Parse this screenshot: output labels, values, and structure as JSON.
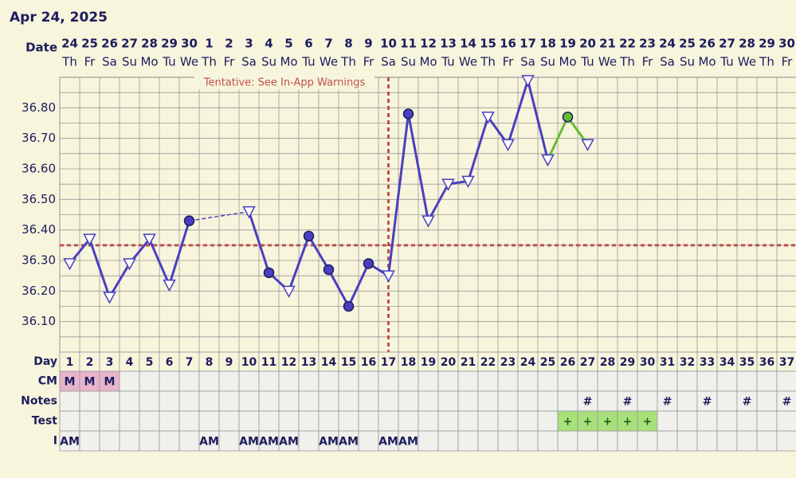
{
  "title": "Apr 24, 2025",
  "chart_data": {
    "type": "line",
    "x_header": "Date",
    "dates": [
      "24",
      "25",
      "26",
      "27",
      "28",
      "29",
      "30",
      "1",
      "2",
      "3",
      "4",
      "5",
      "6",
      "7",
      "8",
      "9",
      "10",
      "11",
      "12",
      "13",
      "14",
      "15",
      "16",
      "17",
      "18",
      "19",
      "20",
      "21",
      "22",
      "23",
      "24",
      "25",
      "26",
      "27",
      "28",
      "29",
      "30"
    ],
    "weekdays": [
      "Th",
      "Fr",
      "Sa",
      "Su",
      "Mo",
      "Tu",
      "We",
      "Th",
      "Fr",
      "Sa",
      "Su",
      "Mo",
      "Tu",
      "We",
      "Th",
      "Fr",
      "Sa",
      "Su",
      "Mo",
      "Tu",
      "We",
      "Th",
      "Fr",
      "Sa",
      "Su",
      "Mo",
      "Tu",
      "We",
      "Th",
      "Fr",
      "Sa",
      "Su",
      "Mo",
      "Tu",
      "We",
      "Th",
      "Fr"
    ],
    "ylim": [
      36.0,
      36.9
    ],
    "yticks": [
      {
        "value": 36.1,
        "label": "36.10"
      },
      {
        "value": 36.2,
        "label": "36.20"
      },
      {
        "value": 36.3,
        "label": "36.30"
      },
      {
        "value": 36.4,
        "label": "36.40"
      },
      {
        "value": 36.5,
        "label": "36.50"
      },
      {
        "value": 36.6,
        "label": "36.60"
      },
      {
        "value": 36.7,
        "label": "36.70"
      },
      {
        "value": 36.8,
        "label": "36.80"
      }
    ],
    "y_minor_ticks": [
      36.05,
      36.15,
      36.25,
      36.35,
      36.45,
      36.55,
      36.65,
      36.75,
      36.85
    ],
    "series": [
      {
        "color": "#4a3fbf",
        "values": [
          36.29,
          36.37,
          36.18,
          36.29,
          36.37,
          36.22,
          36.43,
          null,
          null,
          36.46,
          36.26,
          36.2,
          36.38,
          36.27,
          36.15,
          36.29,
          36.25,
          36.78,
          36.43,
          36.55,
          36.56,
          36.77,
          36.68,
          36.89,
          36.63,
          36.77,
          36.68,
          null,
          null,
          null,
          null,
          null,
          null,
          null,
          null,
          null,
          null
        ],
        "markers": [
          "open",
          "open",
          "open",
          "open",
          "open",
          "open",
          "filled",
          null,
          null,
          "open",
          "filled",
          "open",
          "filled",
          "filled",
          "filled",
          "filled",
          "open",
          "filled",
          "open",
          "open",
          "open",
          "open",
          "open",
          "open",
          "open",
          "filled",
          "open",
          null,
          null,
          null,
          null,
          null,
          null,
          null,
          null,
          null,
          null
        ]
      }
    ],
    "highlight": {
      "color": "#66bb33",
      "from_index": 24
    },
    "coverline": 36.35,
    "coverline_color": "#c0504d",
    "ovulation_index": 16,
    "annotation": "Tentative: See In-App Warnings"
  },
  "table": {
    "rows": [
      {
        "label": "Day",
        "color": "#f7f5dc",
        "cells": [
          1,
          2,
          3,
          4,
          5,
          6,
          7,
          8,
          9,
          10,
          11,
          12,
          13,
          14,
          15,
          16,
          17,
          18,
          19,
          20,
          21,
          22,
          23,
          24,
          25,
          26,
          27,
          28,
          29,
          30,
          31,
          32,
          33,
          34,
          35,
          36,
          37
        ]
      },
      {
        "label": "CM",
        "color": "#e8b4cc",
        "cells": [
          "M",
          "M",
          "M",
          null,
          null,
          null,
          null,
          null,
          null,
          null,
          null,
          null,
          null,
          null,
          null,
          null,
          null,
          null,
          null,
          null,
          null,
          null,
          null,
          null,
          null,
          null,
          null,
          null,
          null,
          null,
          null,
          null,
          null,
          null,
          null,
          null,
          null
        ]
      },
      {
        "label": "Notes",
        "color": "#f0f0ec",
        "cells": [
          null,
          null,
          null,
          null,
          null,
          null,
          null,
          null,
          null,
          null,
          null,
          null,
          null,
          null,
          null,
          null,
          null,
          null,
          null,
          null,
          null,
          null,
          null,
          null,
          null,
          null,
          "#",
          null,
          "#",
          null,
          "#",
          null,
          "#",
          null,
          "#",
          null,
          "#"
        ]
      },
      {
        "label": "Test",
        "color": "#a8e07a",
        "cells": [
          null,
          null,
          null,
          null,
          null,
          null,
          null,
          null,
          null,
          null,
          null,
          null,
          null,
          null,
          null,
          null,
          null,
          null,
          null,
          null,
          null,
          null,
          null,
          null,
          null,
          "+",
          "+",
          "+",
          "+",
          "+",
          null,
          null,
          null,
          null,
          null,
          null,
          null
        ]
      },
      {
        "label": "I",
        "color": "#f0f0ec",
        "cells": [
          "AM",
          null,
          null,
          null,
          null,
          null,
          null,
          "AM",
          null,
          "AM",
          "AM",
          "AM",
          null,
          "AM",
          "AM",
          null,
          "AM",
          "AM",
          null,
          null,
          null,
          null,
          null,
          null,
          null,
          null,
          null,
          null,
          null,
          null,
          null,
          null,
          null,
          null,
          null,
          null,
          null
        ]
      }
    ]
  }
}
